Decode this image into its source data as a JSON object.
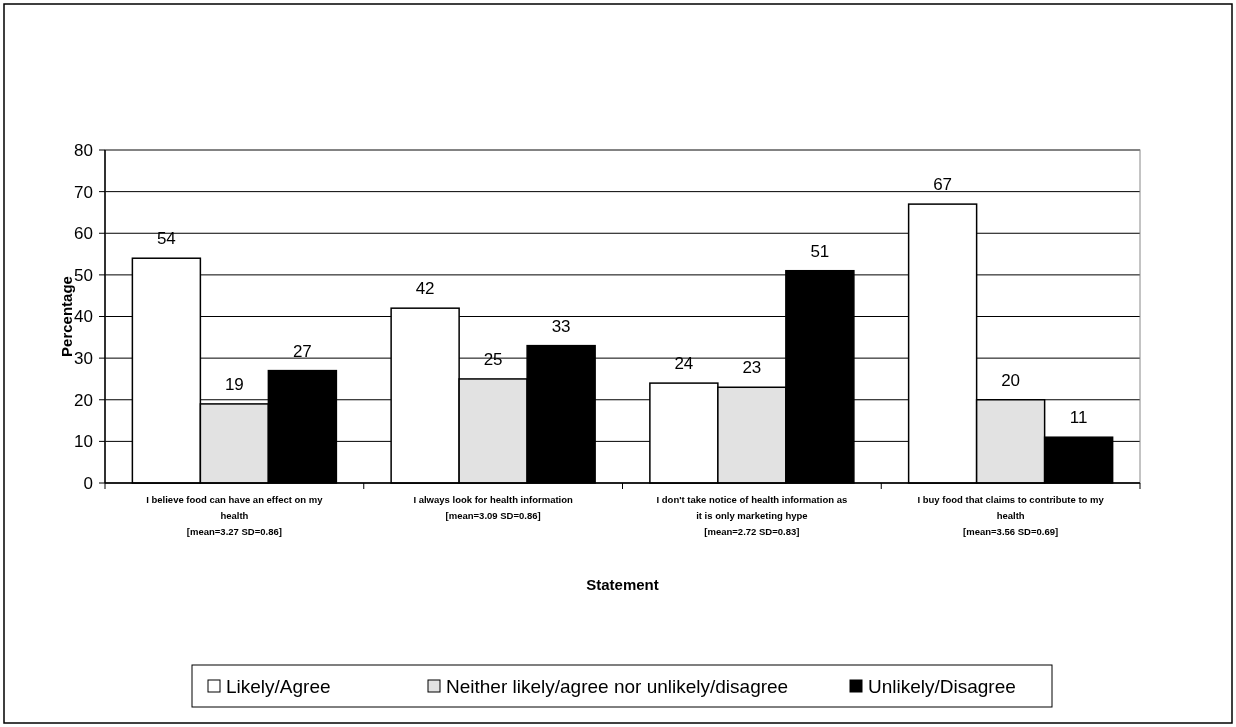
{
  "chart_data": {
    "type": "bar",
    "xlabel": "Statement",
    "ylabel": "Percentage",
    "categories": [
      "I believe food can have an effect on my\nhealth\n[mean=3.27 SD=0.86]",
      "I always look for health information\n[mean=3.09 SD=0.86]",
      "I don't take notice of health information as\nit is only marketing hype\n[mean=2.72 SD=0.83]",
      "I buy food that claims to contribute to my\nhealth\n[mean=3.56 SD=0.69]"
    ],
    "series": [
      {
        "name": "Likely/Agree",
        "color": "#ffffff",
        "values": [
          54,
          42,
          24,
          67
        ]
      },
      {
        "name": "Neither likely/agree nor unlikely/disagree",
        "color": "#e2e2e2",
        "values": [
          19,
          25,
          23,
          20
        ]
      },
      {
        "name": "Unlikely/Disagree",
        "color": "#000000",
        "values": [
          27,
          33,
          51,
          11
        ]
      }
    ],
    "ylim": [
      0,
      80
    ],
    "yticks": [
      0,
      10,
      20,
      30,
      40,
      50,
      60,
      70,
      80
    ],
    "grid": "y",
    "data_labels": true,
    "legend": "bottom"
  }
}
